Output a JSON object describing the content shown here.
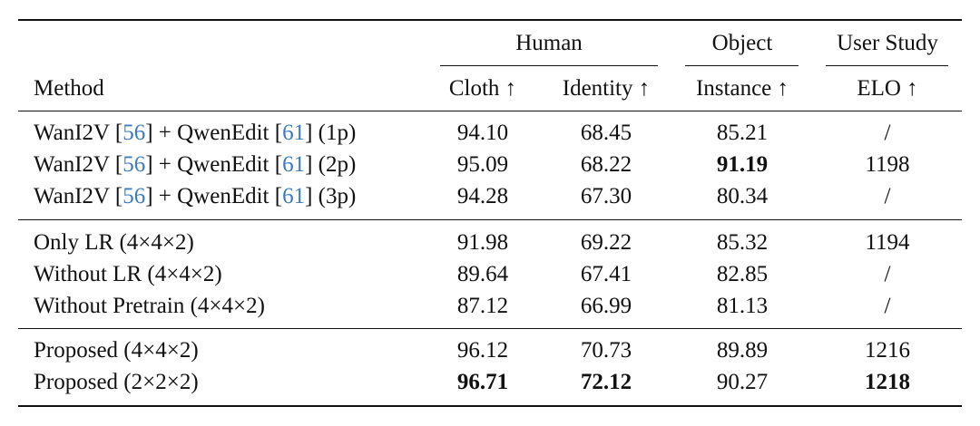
{
  "table": {
    "groups": [
      "Human",
      "Object",
      "User Study"
    ],
    "columns": [
      "Method",
      "Cloth ↑",
      "Identity ↑",
      "Instance ↑",
      "ELO ↑"
    ],
    "sections": [
      {
        "rows": [
          {
            "method": [
              "WanI2V [",
              "56",
              "] + QwenEdit [",
              "61",
              "] (1p)"
            ],
            "cite_segments": [
              1,
              3
            ],
            "cells": [
              "94.10",
              "68.45",
              "85.21",
              "/"
            ],
            "bold_cells": []
          },
          {
            "method": [
              "WanI2V [",
              "56",
              "] + QwenEdit [",
              "61",
              "] (2p)"
            ],
            "cite_segments": [
              1,
              3
            ],
            "cells": [
              "95.09",
              "68.22",
              "91.19",
              "1198"
            ],
            "bold_cells": [
              2
            ]
          },
          {
            "method": [
              "WanI2V [",
              "56",
              "] + QwenEdit [",
              "61",
              "] (3p)"
            ],
            "cite_segments": [
              1,
              3
            ],
            "cells": [
              "94.28",
              "67.30",
              "80.34",
              "/"
            ],
            "bold_cells": []
          }
        ]
      },
      {
        "rows": [
          {
            "method": [
              "Only LR (4×4×2)"
            ],
            "cite_segments": [],
            "cells": [
              "91.98",
              "69.22",
              "85.32",
              "1194"
            ],
            "bold_cells": []
          },
          {
            "method": [
              "Without LR (4×4×2)"
            ],
            "cite_segments": [],
            "cells": [
              "89.64",
              "67.41",
              "82.85",
              "/"
            ],
            "bold_cells": []
          },
          {
            "method": [
              "Without Pretrain (4×4×2)"
            ],
            "cite_segments": [],
            "cells": [
              "87.12",
              "66.99",
              "81.13",
              "/"
            ],
            "bold_cells": []
          }
        ]
      },
      {
        "rows": [
          {
            "method": [
              "Proposed (4×4×2)"
            ],
            "cite_segments": [],
            "cells": [
              "96.12",
              "70.73",
              "89.89",
              "1216"
            ],
            "bold_cells": []
          },
          {
            "method": [
              "Proposed (2×2×2)"
            ],
            "cite_segments": [],
            "cells": [
              "96.71",
              "72.12",
              "90.27",
              "1218"
            ],
            "bold_cells": [
              0,
              1,
              3
            ]
          }
        ]
      }
    ]
  }
}
